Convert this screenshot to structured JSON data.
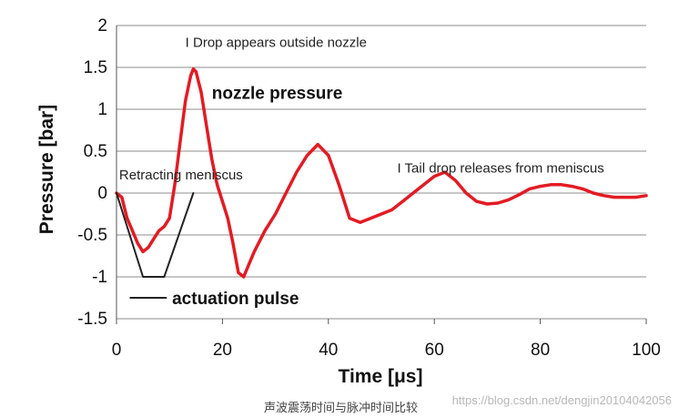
{
  "colors": {
    "pressure": "#e31b23",
    "pulse": "#222222",
    "grid": "#8c8c8c",
    "axis": "#555555"
  },
  "chart_data": {
    "type": "line",
    "title": "",
    "xlabel": "Time [μs]",
    "ylabel": "Pressure [bar]",
    "xlim": [
      0,
      100
    ],
    "ylim": [
      -1.5,
      2
    ],
    "grid": "horizontal",
    "x_ticks": [
      0,
      20,
      40,
      60,
      80,
      100
    ],
    "y_ticks": [
      -1.5,
      -1,
      -0.5,
      0,
      0.5,
      1,
      1.5,
      2
    ],
    "x_tick_labels": [
      "0",
      "20",
      "40",
      "60",
      "80",
      "100"
    ],
    "y_tick_labels": [
      "-1.5",
      "-1",
      "-0.5",
      "0",
      "0.5",
      "1",
      "1.5",
      "2"
    ],
    "series": [
      {
        "name": "nozzle pressure",
        "color": "#e31b23",
        "x": [
          0,
          1,
          2,
          3,
          4,
          5,
          6,
          7,
          8,
          9,
          10,
          11,
          12,
          13,
          14,
          14.5,
          15,
          16,
          17,
          18,
          19,
          20,
          21,
          22,
          23,
          24,
          25,
          26,
          28,
          30,
          32,
          34,
          36,
          38,
          40,
          42,
          44,
          46,
          48,
          50,
          52,
          54,
          56,
          58,
          60,
          62,
          64,
          66,
          68,
          70,
          72,
          74,
          76,
          78,
          80,
          82,
          84,
          86,
          88,
          90,
          92,
          94,
          96,
          98,
          100
        ],
        "y": [
          0,
          -0.05,
          -0.3,
          -0.45,
          -0.6,
          -0.7,
          -0.65,
          -0.55,
          -0.45,
          -0.4,
          -0.3,
          0.1,
          0.6,
          1.1,
          1.4,
          1.48,
          1.45,
          1.2,
          0.8,
          0.4,
          0.1,
          -0.1,
          -0.3,
          -0.6,
          -0.95,
          -1.0,
          -0.85,
          -0.7,
          -0.45,
          -0.25,
          0,
          0.25,
          0.45,
          0.58,
          0.45,
          0.1,
          -0.3,
          -0.35,
          -0.3,
          -0.25,
          -0.2,
          -0.1,
          0,
          0.1,
          0.2,
          0.25,
          0.15,
          0,
          -0.1,
          -0.13,
          -0.12,
          -0.08,
          -0.02,
          0.05,
          0.08,
          0.1,
          0.1,
          0.08,
          0.05,
          0.0,
          -0.03,
          -0.05,
          -0.05,
          -0.05,
          -0.03
        ]
      },
      {
        "name": "actuation pulse",
        "color": "#222222",
        "x": [
          0,
          5,
          9,
          14.5
        ],
        "y": [
          0,
          -1.0,
          -1.0,
          0
        ]
      }
    ],
    "annotations": [
      {
        "text": "I Drop appears outside nozzle",
        "x": 13,
        "y": 1.8
      },
      {
        "text": "Retracting meniscus",
        "x": 0.5,
        "y": 0.22
      },
      {
        "text": "I Tail drop releases from meniscus",
        "x": 53,
        "y": 0.3
      },
      {
        "text": "nozzle pressure",
        "x": 18,
        "y": 1.2
      },
      {
        "text": "actuation pulse",
        "x": 10.5,
        "y": -1.25
      }
    ],
    "legend": {
      "label": "actuation pulse",
      "x_range": [
        2.5,
        9.5
      ],
      "y": -1.25
    }
  },
  "caption": "声波震荡时间与脉冲时间比较",
  "watermark": "https://blog.csdn.net/dengjin20104042056"
}
